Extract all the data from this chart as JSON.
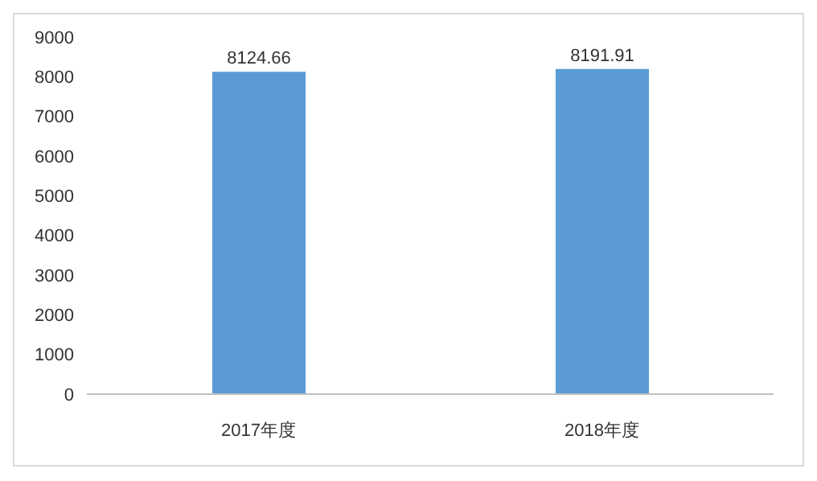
{
  "chart_data": {
    "type": "bar",
    "categories": [
      "2017年度",
      "2018年度"
    ],
    "values": [
      8124.66,
      8191.91
    ],
    "color": "#5b9bd5",
    "ylim": [
      0,
      9000
    ],
    "yticks": [
      0,
      1000,
      2000,
      3000,
      4000,
      5000,
      6000,
      7000,
      8000,
      9000
    ],
    "data_labels": true,
    "grid": false,
    "legend": false
  }
}
